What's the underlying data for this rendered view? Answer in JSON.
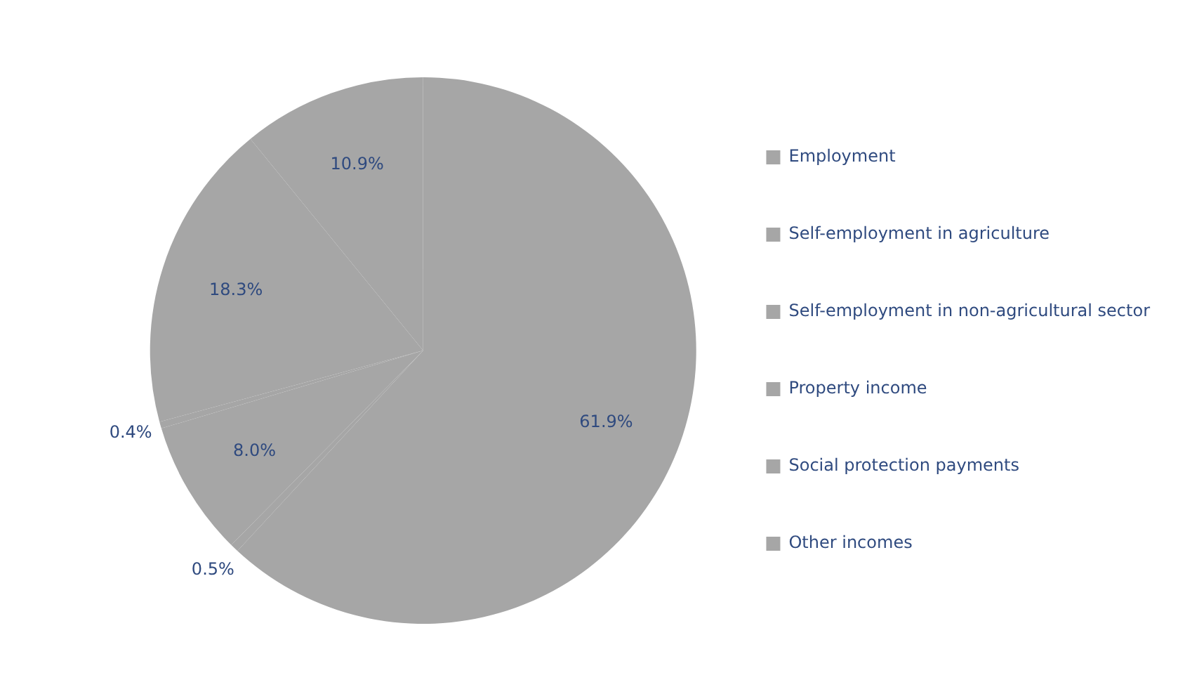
{
  "chart_data": {
    "type": "pie",
    "categories": [
      "Employment",
      "Self-employment in agriculture",
      "Self-employment in non-agricultural sector",
      "Property income",
      "Social protection payments",
      "Other incomes"
    ],
    "values": [
      61.9,
      0.5,
      8.0,
      0.4,
      18.3,
      10.9
    ],
    "colors": [
      "#a6a6a6",
      "#a6a6a6",
      "#a6a6a6",
      "#a6a6a6",
      "#a6a6a6",
      "#a6a6a6"
    ],
    "value_labels": [
      "61.9%",
      "0.5%",
      "8.0%",
      "0.4%",
      "18.3%",
      "10.9%"
    ],
    "legend": "right"
  }
}
